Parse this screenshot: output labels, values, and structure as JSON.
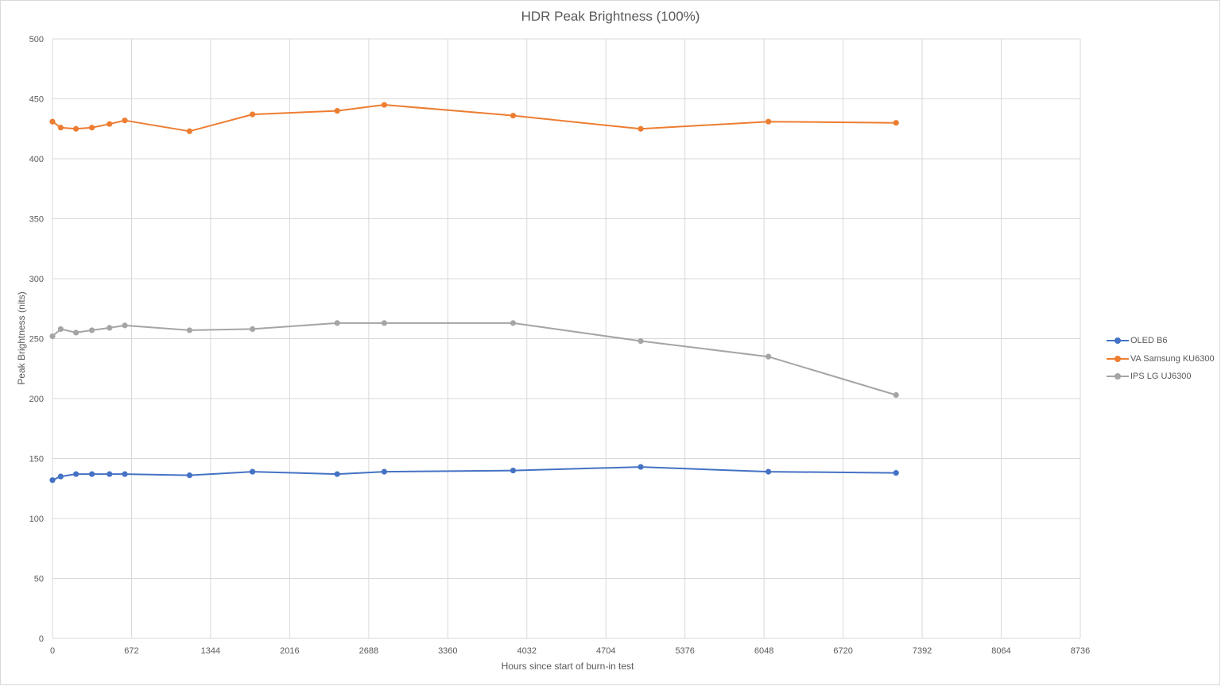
{
  "chart_data": {
    "type": "line",
    "title": "HDR Peak Brightness (100%)",
    "xlabel": "Hours since start of burn-in test",
    "ylabel": "Peak Brightness (nits)",
    "xlim": [
      0,
      8736
    ],
    "ylim": [
      0,
      500
    ],
    "x_ticks": [
      0,
      672,
      1344,
      2016,
      2688,
      3360,
      4032,
      4704,
      5376,
      6048,
      6720,
      7392,
      8064,
      8736
    ],
    "y_ticks": [
      0,
      50,
      100,
      150,
      200,
      250,
      300,
      350,
      400,
      450,
      500
    ],
    "grid": true,
    "legend_position": "right",
    "series": [
      {
        "name": "OLED B6",
        "color": "#4472C4",
        "points": [
          [
            0,
            132
          ],
          [
            70,
            135
          ],
          [
            200,
            137
          ],
          [
            335,
            137
          ],
          [
            485,
            137
          ],
          [
            615,
            137
          ],
          [
            1165,
            136
          ],
          [
            1700,
            139
          ],
          [
            2420,
            137
          ],
          [
            2820,
            139
          ],
          [
            3915,
            140
          ],
          [
            5000,
            143
          ],
          [
            6085,
            139
          ],
          [
            7170,
            138
          ]
        ]
      },
      {
        "name": "VA Samsung KU6300",
        "color": "#ED7D31",
        "points": [
          [
            0,
            431
          ],
          [
            70,
            426
          ],
          [
            200,
            425
          ],
          [
            335,
            426
          ],
          [
            485,
            429
          ],
          [
            615,
            432
          ],
          [
            1165,
            423
          ],
          [
            1700,
            437
          ],
          [
            2420,
            440
          ],
          [
            2820,
            445
          ],
          [
            3915,
            436
          ],
          [
            5000,
            425
          ],
          [
            6085,
            431
          ],
          [
            7170,
            430
          ]
        ]
      },
      {
        "name": "IPS LG UJ6300",
        "color": "#A5A5A5",
        "points": [
          [
            0,
            252
          ],
          [
            70,
            258
          ],
          [
            200,
            255
          ],
          [
            335,
            257
          ],
          [
            485,
            259
          ],
          [
            615,
            261
          ],
          [
            1165,
            257
          ],
          [
            1700,
            258
          ],
          [
            2420,
            263
          ],
          [
            2820,
            263
          ],
          [
            3915,
            263
          ],
          [
            5000,
            248
          ],
          [
            6085,
            235
          ],
          [
            7170,
            203
          ]
        ]
      }
    ]
  }
}
